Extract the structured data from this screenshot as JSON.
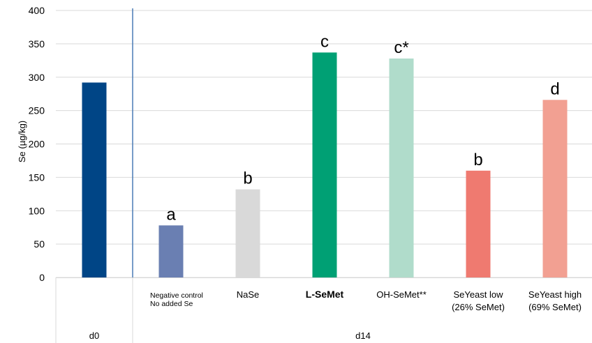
{
  "chart_data": {
    "type": "bar",
    "ylabel": "Se (µg/kg)",
    "ylim": [
      0,
      400
    ],
    "yticks": [
      0,
      50,
      100,
      150,
      200,
      250,
      300,
      350,
      400
    ],
    "grid": true,
    "legend": "none",
    "categories": [
      {
        "lines": [
          "d0"
        ],
        "hidden": true
      },
      {
        "lines": [
          "Negative control",
          "No added Se"
        ]
      },
      {
        "lines": [
          "NaSe"
        ]
      },
      {
        "lines": [
          "L-SeMet"
        ],
        "bold": true
      },
      {
        "lines": [
          "OH-SeMet**"
        ]
      },
      {
        "lines": [
          "SeYeast low",
          "(26% SeMet)"
        ]
      },
      {
        "lines": [
          "SeYeast high",
          "(69% SeMet)"
        ]
      }
    ],
    "values": [
      292,
      78,
      132,
      337,
      328,
      160,
      266
    ],
    "significance": [
      "",
      "a",
      "b",
      "c",
      "c*",
      "b",
      "d"
    ],
    "colors": [
      "#004586",
      "#6a7fb2",
      "#d9d9d9",
      "#00a074",
      "#b0dccb",
      "#ef7a70",
      "#f2a092"
    ],
    "groups": [
      {
        "label": "d0",
        "categories": [
          0
        ]
      },
      {
        "label": "d14",
        "categories": [
          1,
          2,
          3,
          4,
          5,
          6
        ]
      }
    ],
    "separator_after_category": 0
  }
}
